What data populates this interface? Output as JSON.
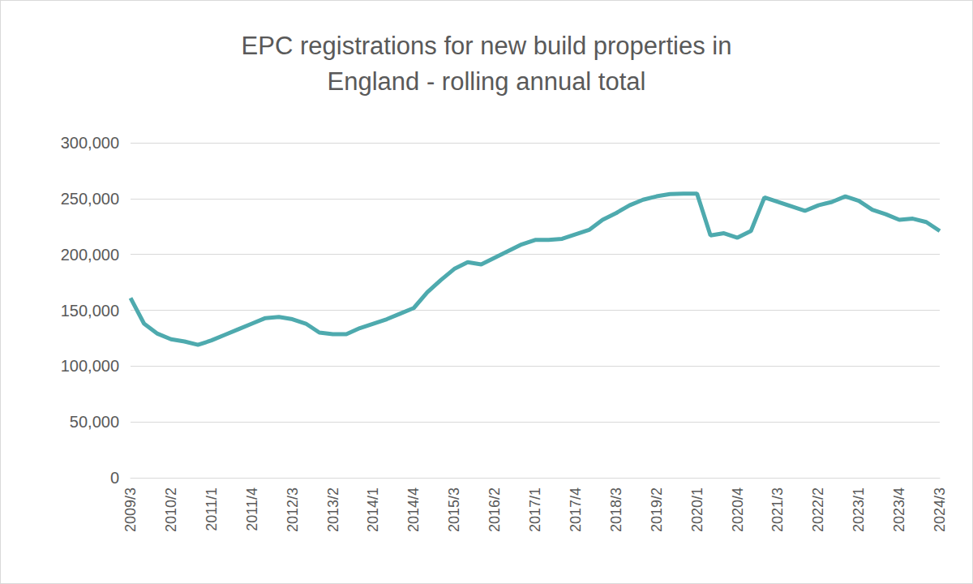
{
  "chart_data": {
    "type": "line",
    "title": "EPC registrations for new build properties in\nEngland - rolling annual total",
    "categories": [
      "2009/3",
      null,
      null,
      "2010/2",
      null,
      null,
      "2011/1",
      null,
      null,
      "2011/4",
      null,
      null,
      "2012/3",
      null,
      null,
      "2013/2",
      null,
      null,
      "2014/1",
      null,
      null,
      "2014/4",
      null,
      null,
      "2015/3",
      null,
      null,
      "2016/2",
      null,
      null,
      "2017/1",
      null,
      null,
      "2017/4",
      null,
      null,
      "2018/3",
      null,
      null,
      "2019/2",
      null,
      null,
      "2020/1",
      null,
      null,
      "2020/4",
      null,
      null,
      "2021/3",
      null,
      null,
      "2022/2",
      null,
      null,
      "2023/1",
      null,
      null,
      "2023/4",
      null,
      null,
      "2024/3"
    ],
    "values": [
      161000,
      138000,
      129000,
      124000,
      122000,
      119000,
      123000,
      128000,
      133000,
      138000,
      143000,
      144000,
      142000,
      138000,
      130000,
      128500,
      128500,
      134000,
      138000,
      142000,
      147000,
      152000,
      166000,
      177000,
      187000,
      193000,
      191000,
      197000,
      203000,
      209000,
      213000,
      213000,
      214000,
      218000,
      222000,
      231000,
      237000,
      244000,
      249000,
      252000,
      254000,
      254500,
      254500,
      217000,
      219000,
      215000,
      221000,
      251000,
      247000,
      243000,
      239000,
      244000,
      247000,
      252000,
      248000,
      240000,
      236000,
      231000,
      232000,
      229000,
      221000
    ],
    "color": "#4eaaae",
    "ylim": [
      0,
      300000
    ],
    "yticks": [
      0,
      {
        "value": 50000,
        "label": "50,000"
      },
      {
        "value": 100000,
        "label": "100,000"
      },
      {
        "value": 150000,
        "label": "150,000"
      },
      {
        "value": 200000,
        "label": "200,000"
      },
      {
        "value": 250000,
        "label": "250,000"
      },
      {
        "value": 300000,
        "label": "300,000"
      }
    ],
    "grid": true
  }
}
